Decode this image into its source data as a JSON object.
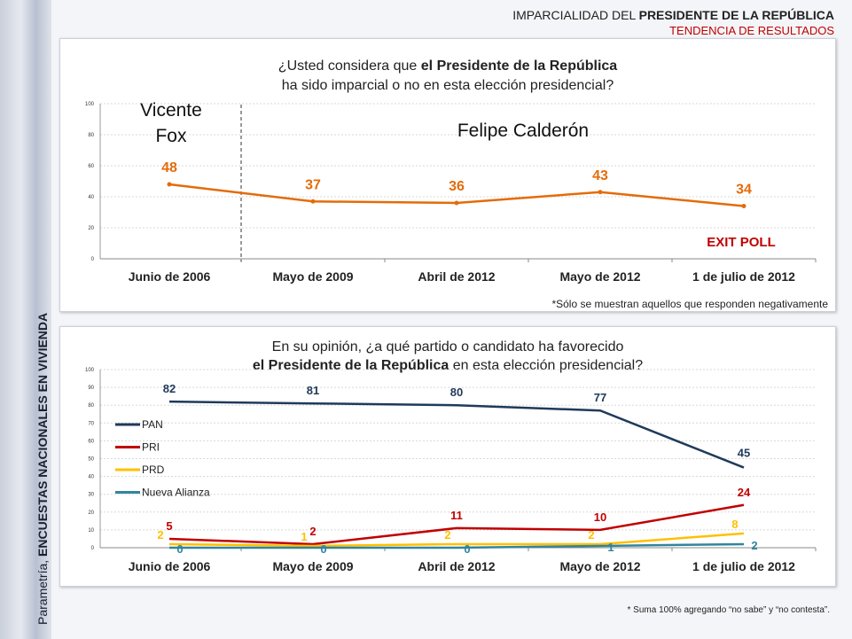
{
  "header": {
    "line1_normal": "IMPARCIALIDAD DEL ",
    "line1_bold": "PRESIDENTE DE LA REPÚBLICA",
    "line2": "TENDENCIA DE RESULTADOS"
  },
  "sidebar": {
    "normal": "Parametría, ",
    "bold": "ENCUESTAS NACIONALES EN VIVIENDA"
  },
  "colors": {
    "orange": "#e36c0a",
    "pan": "#1f3a5a",
    "pri": "#c00000",
    "prd": "#ffc000",
    "nueva_alianza": "#31859c",
    "accent_red": "#c00000"
  },
  "panel1": {
    "question_a": "¿Usted considera que ",
    "question_bold": "el Presidente de la República",
    "question_b": "ha sido imparcial o no en esta elección presidencial?",
    "era1_line1": "Vicente",
    "era1_line2": "Fox",
    "era2": "Felipe Calderón",
    "badge": "EXIT POLL",
    "note": "*Sólo se muestran aquellos que responden negativamente"
  },
  "panel2": {
    "question_a": "En su opinión, ¿a qué partido o candidato ha favorecido",
    "question_bold": "el Presidente de la República",
    "question_b": " en esta elección presidencial?",
    "footnote": "* Suma 100%  agregando “no sabe” y “no contesta”."
  },
  "chart_data": [
    {
      "type": "line",
      "categories": [
        "Junio de 2006",
        "Mayo de 2009",
        "Abril de 2012",
        "Mayo de 2012",
        "1 de julio de 2012"
      ],
      "ylim": [
        0,
        100
      ],
      "yticks": [
        0,
        20,
        40,
        60,
        80,
        100
      ],
      "grid": true,
      "series": [
        {
          "values": [
            48,
            37,
            36,
            43,
            34
          ],
          "color": "#e36c0a"
        }
      ]
    },
    {
      "type": "line",
      "categories": [
        "Junio de 2006",
        "Mayo de 2009",
        "Abril de 2012",
        "Mayo de 2012",
        "1 de julio de 2012"
      ],
      "ylim": [
        0,
        100
      ],
      "yticks": [
        0,
        10,
        20,
        30,
        40,
        50,
        60,
        70,
        80,
        90,
        100
      ],
      "grid": true,
      "legend": "left",
      "series": [
        {
          "name": "PAN",
          "values": [
            82,
            81,
            80,
            77,
            45
          ],
          "color": "#1f3a5a"
        },
        {
          "name": "PRI",
          "values": [
            5,
            2,
            11,
            10,
            24
          ],
          "color": "#c00000"
        },
        {
          "name": "PRD",
          "values": [
            2,
            1,
            2,
            2,
            8
          ],
          "color": "#ffc000"
        },
        {
          "name": "Nueva Alianza",
          "values": [
            0,
            0,
            0,
            1,
            2
          ],
          "color": "#31859c"
        }
      ]
    }
  ]
}
